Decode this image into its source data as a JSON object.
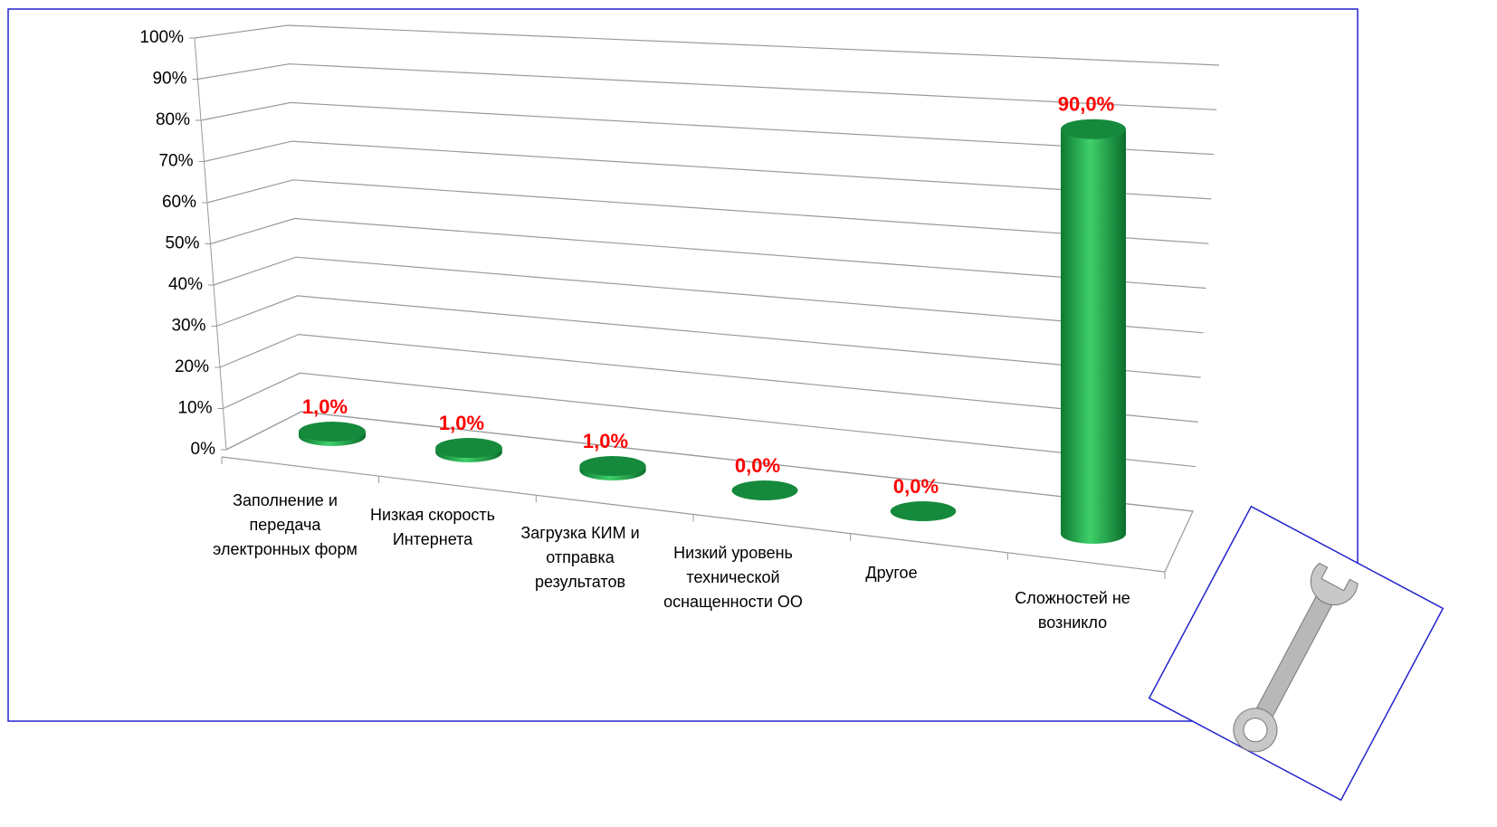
{
  "chart_data": {
    "type": "bar3d",
    "categories": [
      "Заполнение и передача электронных форм",
      "Низкая скорость Интернета",
      "Загрузка КИМ и отправка результатов",
      "Низкий уровень технической оснащенности ОО",
      "Другое",
      "Сложностей не возникло"
    ],
    "values": [
      1,
      1,
      1,
      0,
      0,
      90
    ],
    "value_labels": [
      "1,0%",
      "1,0%",
      "1,0%",
      "0,0%",
      "0,0%",
      "90,0%"
    ],
    "color": "#1e9e45",
    "label_color": "#ff0000",
    "ylim": [
      0,
      100
    ],
    "yticks": [
      {
        "value": 0,
        "label": "0%"
      },
      {
        "value": 10,
        "label": "10%"
      },
      {
        "value": 20,
        "label": "20%"
      },
      {
        "value": 30,
        "label": "30%"
      },
      {
        "value": 40,
        "label": "40%"
      },
      {
        "value": 50,
        "label": "50%"
      },
      {
        "value": 60,
        "label": "60%"
      },
      {
        "value": 70,
        "label": "70%"
      },
      {
        "value": 80,
        "label": "80%"
      },
      {
        "value": 90,
        "label": "90%"
      },
      {
        "value": 100,
        "label": "100%"
      }
    ],
    "grid": true
  }
}
